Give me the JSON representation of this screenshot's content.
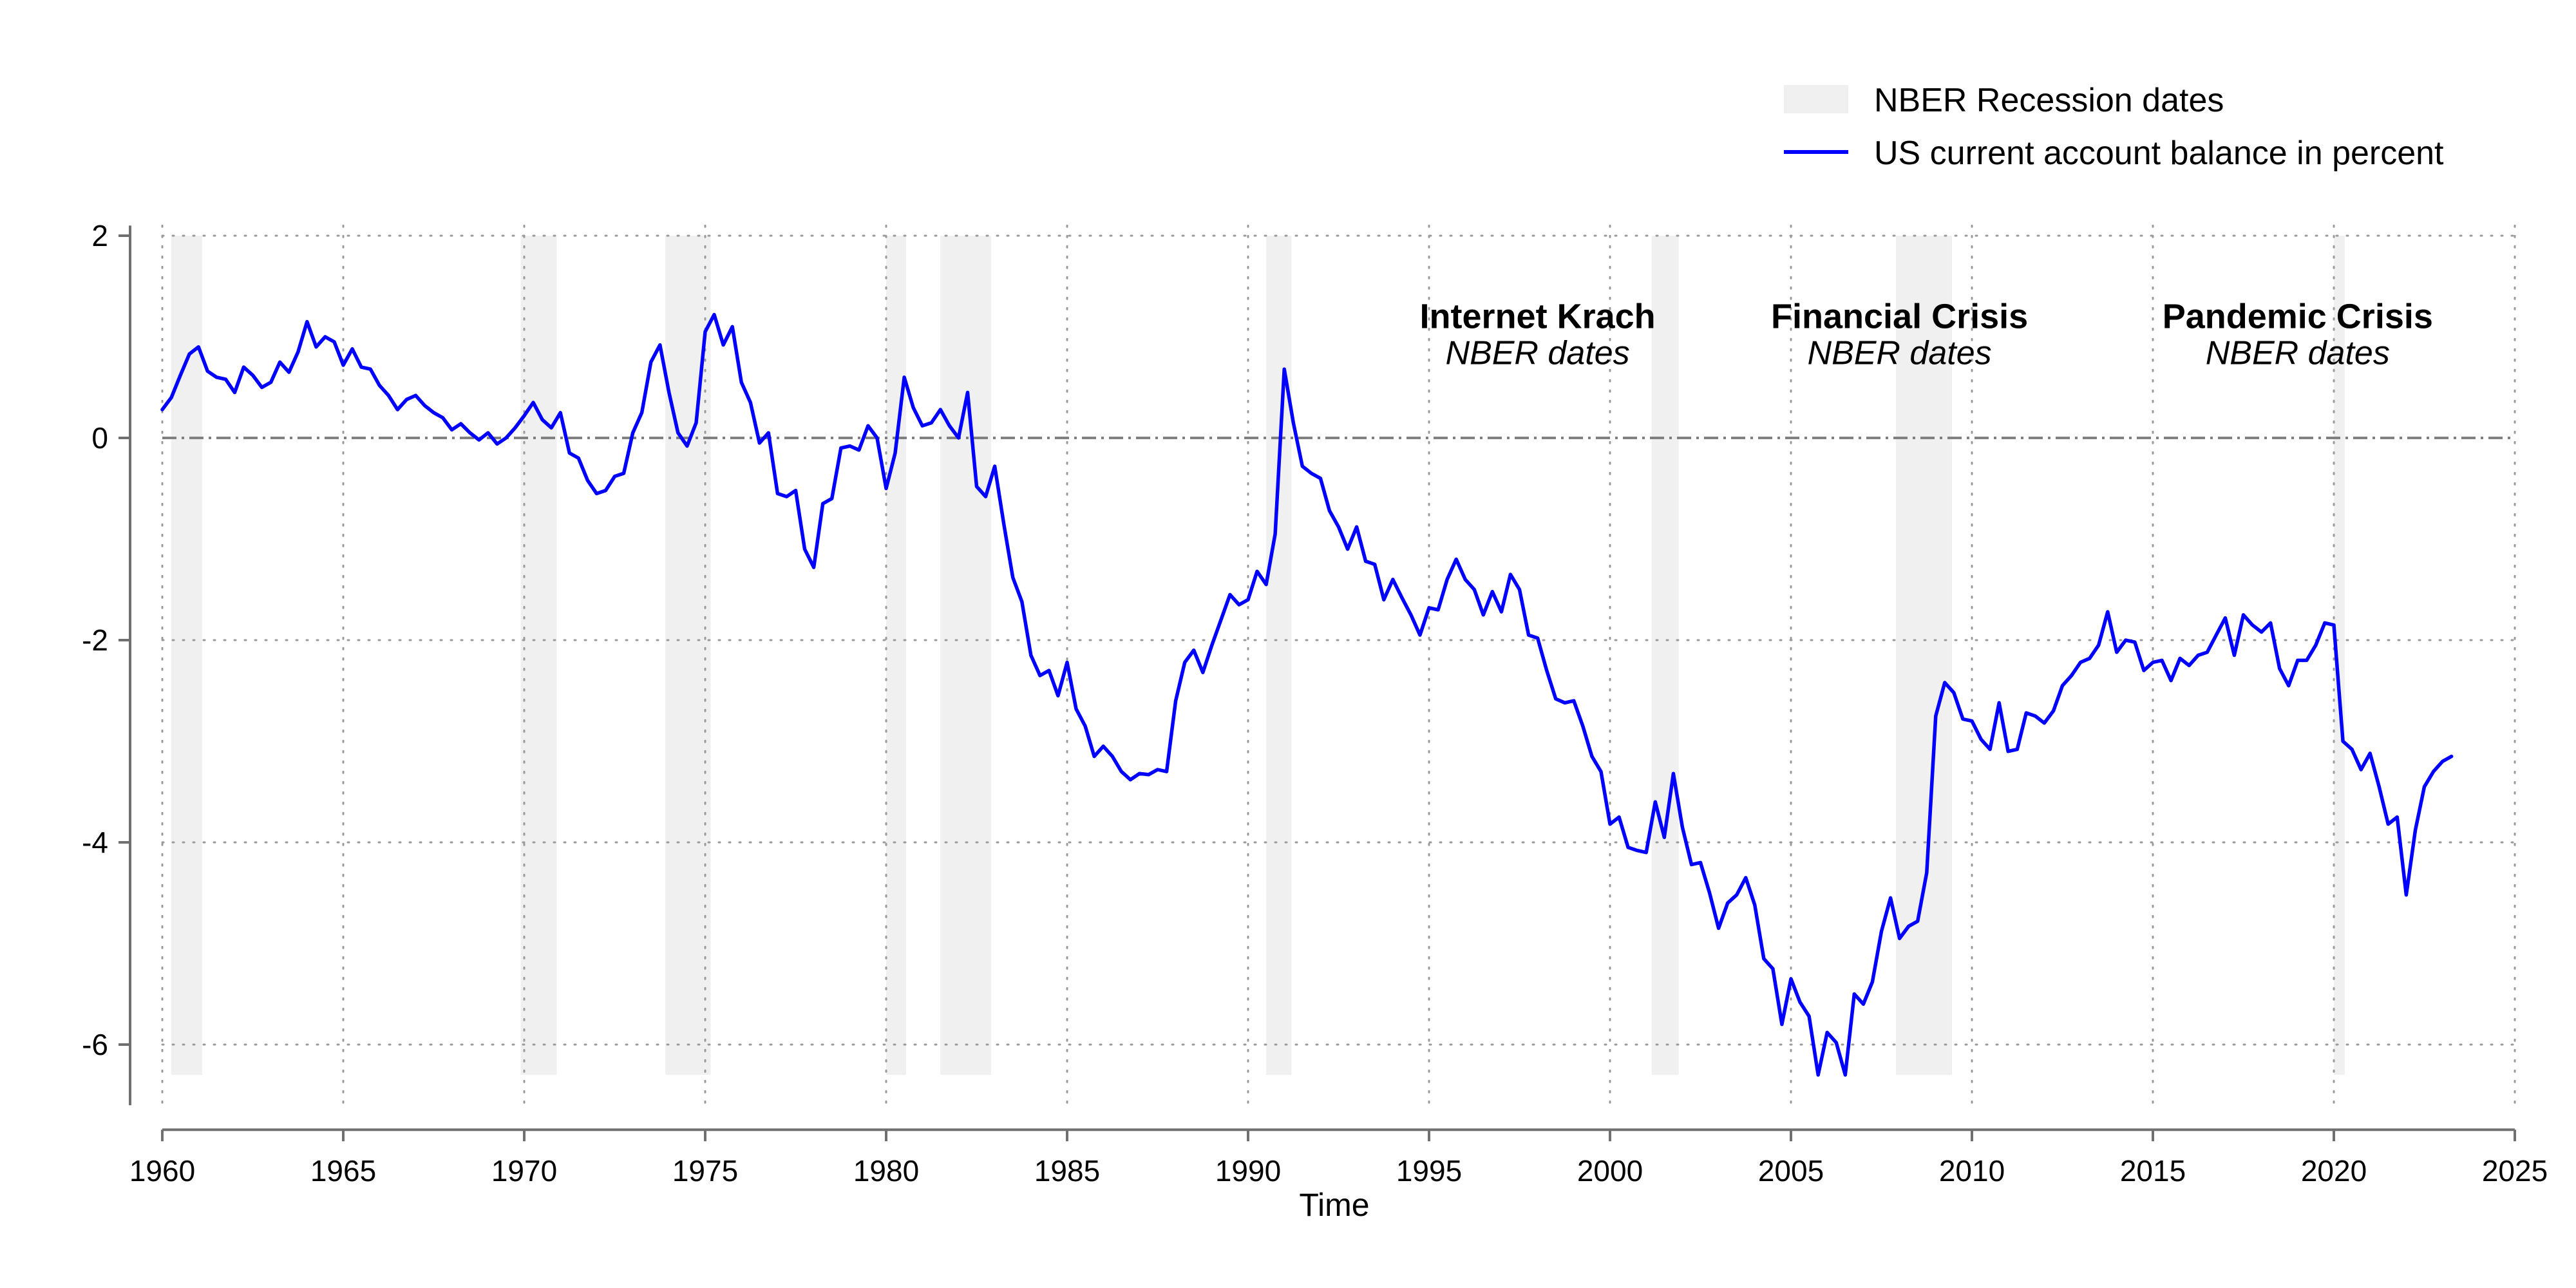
{
  "chart_data": {
    "type": "line",
    "title": "",
    "xlabel": "Time",
    "ylabel": "",
    "xlim": [
      1960,
      2025
    ],
    "ylim": [
      -6.6,
      2.1
    ],
    "x_ticks": [
      1960,
      1965,
      1970,
      1975,
      1980,
      1985,
      1990,
      1995,
      2000,
      2005,
      2010,
      2015,
      2020,
      2025
    ],
    "y_ticks": [
      2,
      0,
      -2,
      -4,
      -6
    ],
    "grid": "dotted",
    "reference_line": 0,
    "legend_position": "top-right",
    "legend": {
      "recession_label": "NBER Recession dates",
      "series_label": "US current account balance in percent"
    },
    "colors": {
      "series": "#0000ff",
      "recession": "#f0f0f0",
      "grid": "#9a9a9a",
      "zero_line": "#808080",
      "axis": "#707070"
    },
    "recessions": [
      [
        1960.25,
        1961.1
      ],
      [
        1969.9,
        1970.9
      ],
      [
        1973.9,
        1975.15
      ],
      [
        1980.0,
        1980.55
      ],
      [
        1981.5,
        1982.9
      ],
      [
        1990.5,
        1991.2
      ],
      [
        2001.15,
        2001.9
      ],
      [
        2007.9,
        2009.45
      ],
      [
        2020.0,
        2020.3
      ]
    ],
    "annotations": [
      {
        "title": "Internet Krach",
        "subtitle": "NBER dates",
        "x": 1998.0,
        "y": 1.15
      },
      {
        "title": "Financial Crisis",
        "subtitle": "NBER dates",
        "x": 2008.0,
        "y": 1.15
      },
      {
        "title": "Pandemic Crisis",
        "subtitle": "NBER dates",
        "x": 2019.0,
        "y": 1.15
      }
    ],
    "series": [
      {
        "name": "US current account balance in percent",
        "points": [
          [
            1960.0,
            0.28
          ],
          [
            1960.25,
            0.4
          ],
          [
            1960.5,
            0.62
          ],
          [
            1960.75,
            0.83
          ],
          [
            1961.0,
            0.9
          ],
          [
            1961.25,
            0.66
          ],
          [
            1961.5,
            0.6
          ],
          [
            1961.75,
            0.58
          ],
          [
            1962.0,
            0.45
          ],
          [
            1962.25,
            0.7
          ],
          [
            1962.5,
            0.62
          ],
          [
            1962.75,
            0.5
          ],
          [
            1963.0,
            0.55
          ],
          [
            1963.25,
            0.75
          ],
          [
            1963.5,
            0.65
          ],
          [
            1963.75,
            0.85
          ],
          [
            1964.0,
            1.15
          ],
          [
            1964.25,
            0.9
          ],
          [
            1964.5,
            1.0
          ],
          [
            1964.75,
            0.95
          ],
          [
            1965.0,
            0.72
          ],
          [
            1965.25,
            0.88
          ],
          [
            1965.5,
            0.7
          ],
          [
            1965.75,
            0.68
          ],
          [
            1966.0,
            0.52
          ],
          [
            1966.25,
            0.42
          ],
          [
            1966.5,
            0.28
          ],
          [
            1966.75,
            0.38
          ],
          [
            1967.0,
            0.42
          ],
          [
            1967.25,
            0.32
          ],
          [
            1967.5,
            0.25
          ],
          [
            1967.75,
            0.2
          ],
          [
            1968.0,
            0.08
          ],
          [
            1968.25,
            0.14
          ],
          [
            1968.5,
            0.05
          ],
          [
            1968.75,
            -0.02
          ],
          [
            1969.0,
            0.05
          ],
          [
            1969.25,
            -0.06
          ],
          [
            1969.5,
            0.0
          ],
          [
            1969.75,
            0.1
          ],
          [
            1970.0,
            0.22
          ],
          [
            1970.25,
            0.35
          ],
          [
            1970.5,
            0.18
          ],
          [
            1970.75,
            0.1
          ],
          [
            1971.0,
            0.25
          ],
          [
            1971.25,
            -0.15
          ],
          [
            1971.5,
            -0.2
          ],
          [
            1971.75,
            -0.42
          ],
          [
            1972.0,
            -0.55
          ],
          [
            1972.25,
            -0.52
          ],
          [
            1972.5,
            -0.38
          ],
          [
            1972.75,
            -0.35
          ],
          [
            1973.0,
            0.05
          ],
          [
            1973.25,
            0.25
          ],
          [
            1973.5,
            0.75
          ],
          [
            1973.75,
            0.92
          ],
          [
            1974.0,
            0.45
          ],
          [
            1974.25,
            0.05
          ],
          [
            1974.5,
            -0.08
          ],
          [
            1974.75,
            0.15
          ],
          [
            1975.0,
            1.05
          ],
          [
            1975.25,
            1.22
          ],
          [
            1975.5,
            0.92
          ],
          [
            1975.75,
            1.1
          ],
          [
            1976.0,
            0.55
          ],
          [
            1976.25,
            0.35
          ],
          [
            1976.5,
            -0.05
          ],
          [
            1976.75,
            0.05
          ],
          [
            1977.0,
            -0.55
          ],
          [
            1977.25,
            -0.58
          ],
          [
            1977.5,
            -0.52
          ],
          [
            1977.75,
            -1.1
          ],
          [
            1978.0,
            -1.28
          ],
          [
            1978.25,
            -0.65
          ],
          [
            1978.5,
            -0.6
          ],
          [
            1978.75,
            -0.1
          ],
          [
            1979.0,
            -0.08
          ],
          [
            1979.25,
            -0.12
          ],
          [
            1979.5,
            0.12
          ],
          [
            1979.75,
            0.0
          ],
          [
            1980.0,
            -0.5
          ],
          [
            1980.25,
            -0.15
          ],
          [
            1980.5,
            0.6
          ],
          [
            1980.75,
            0.3
          ],
          [
            1981.0,
            0.12
          ],
          [
            1981.25,
            0.15
          ],
          [
            1981.5,
            0.28
          ],
          [
            1981.75,
            0.12
          ],
          [
            1982.0,
            0.0
          ],
          [
            1982.25,
            0.45
          ],
          [
            1982.5,
            -0.48
          ],
          [
            1982.75,
            -0.58
          ],
          [
            1983.0,
            -0.28
          ],
          [
            1983.25,
            -0.85
          ],
          [
            1983.5,
            -1.38
          ],
          [
            1983.75,
            -1.62
          ],
          [
            1984.0,
            -2.15
          ],
          [
            1984.25,
            -2.35
          ],
          [
            1984.5,
            -2.3
          ],
          [
            1984.75,
            -2.55
          ],
          [
            1985.0,
            -2.22
          ],
          [
            1985.25,
            -2.68
          ],
          [
            1985.5,
            -2.85
          ],
          [
            1985.75,
            -3.15
          ],
          [
            1986.0,
            -3.05
          ],
          [
            1986.25,
            -3.15
          ],
          [
            1986.5,
            -3.3
          ],
          [
            1986.75,
            -3.38
          ],
          [
            1987.0,
            -3.32
          ],
          [
            1987.25,
            -3.33
          ],
          [
            1987.5,
            -3.28
          ],
          [
            1987.75,
            -3.3
          ],
          [
            1988.0,
            -2.6
          ],
          [
            1988.25,
            -2.22
          ],
          [
            1988.5,
            -2.1
          ],
          [
            1988.75,
            -2.32
          ],
          [
            1989.0,
            -2.05
          ],
          [
            1989.25,
            -1.8
          ],
          [
            1989.5,
            -1.55
          ],
          [
            1989.75,
            -1.65
          ],
          [
            1990.0,
            -1.6
          ],
          [
            1990.25,
            -1.32
          ],
          [
            1990.5,
            -1.45
          ],
          [
            1990.75,
            -0.95
          ],
          [
            1991.0,
            0.68
          ],
          [
            1991.25,
            0.15
          ],
          [
            1991.5,
            -0.28
          ],
          [
            1991.75,
            -0.35
          ],
          [
            1992.0,
            -0.4
          ],
          [
            1992.25,
            -0.72
          ],
          [
            1992.5,
            -0.88
          ],
          [
            1992.75,
            -1.1
          ],
          [
            1993.0,
            -0.88
          ],
          [
            1993.25,
            -1.22
          ],
          [
            1993.5,
            -1.25
          ],
          [
            1993.75,
            -1.6
          ],
          [
            1994.0,
            -1.4
          ],
          [
            1994.25,
            -1.58
          ],
          [
            1994.5,
            -1.75
          ],
          [
            1994.75,
            -1.95
          ],
          [
            1995.0,
            -1.68
          ],
          [
            1995.25,
            -1.7
          ],
          [
            1995.5,
            -1.4
          ],
          [
            1995.75,
            -1.2
          ],
          [
            1996.0,
            -1.4
          ],
          [
            1996.25,
            -1.5
          ],
          [
            1996.5,
            -1.75
          ],
          [
            1996.75,
            -1.52
          ],
          [
            1997.0,
            -1.72
          ],
          [
            1997.25,
            -1.35
          ],
          [
            1997.5,
            -1.5
          ],
          [
            1997.75,
            -1.95
          ],
          [
            1998.0,
            -1.98
          ],
          [
            1998.25,
            -2.3
          ],
          [
            1998.5,
            -2.58
          ],
          [
            1998.75,
            -2.62
          ],
          [
            1999.0,
            -2.6
          ],
          [
            1999.25,
            -2.85
          ],
          [
            1999.5,
            -3.15
          ],
          [
            1999.75,
            -3.3
          ],
          [
            2000.0,
            -3.82
          ],
          [
            2000.25,
            -3.75
          ],
          [
            2000.5,
            -4.05
          ],
          [
            2000.75,
            -4.08
          ],
          [
            2001.0,
            -4.1
          ],
          [
            2001.25,
            -3.6
          ],
          [
            2001.5,
            -3.95
          ],
          [
            2001.75,
            -3.32
          ],
          [
            2002.0,
            -3.85
          ],
          [
            2002.25,
            -4.22
          ],
          [
            2002.5,
            -4.2
          ],
          [
            2002.75,
            -4.5
          ],
          [
            2003.0,
            -4.85
          ],
          [
            2003.25,
            -4.6
          ],
          [
            2003.5,
            -4.52
          ],
          [
            2003.75,
            -4.35
          ],
          [
            2004.0,
            -4.62
          ],
          [
            2004.25,
            -5.15
          ],
          [
            2004.5,
            -5.25
          ],
          [
            2004.75,
            -5.8
          ],
          [
            2005.0,
            -5.35
          ],
          [
            2005.25,
            -5.58
          ],
          [
            2005.5,
            -5.72
          ],
          [
            2005.75,
            -6.3
          ],
          [
            2006.0,
            -5.88
          ],
          [
            2006.25,
            -5.98
          ],
          [
            2006.5,
            -6.3
          ],
          [
            2006.75,
            -5.5
          ],
          [
            2007.0,
            -5.6
          ],
          [
            2007.25,
            -5.38
          ],
          [
            2007.5,
            -4.88
          ],
          [
            2007.75,
            -4.55
          ],
          [
            2008.0,
            -4.95
          ],
          [
            2008.25,
            -4.83
          ],
          [
            2008.5,
            -4.78
          ],
          [
            2008.75,
            -4.3
          ],
          [
            2009.0,
            -2.75
          ],
          [
            2009.25,
            -2.42
          ],
          [
            2009.5,
            -2.52
          ],
          [
            2009.75,
            -2.78
          ],
          [
            2010.0,
            -2.8
          ],
          [
            2010.25,
            -2.98
          ],
          [
            2010.5,
            -3.08
          ],
          [
            2010.75,
            -2.62
          ],
          [
            2011.0,
            -3.1
          ],
          [
            2011.25,
            -3.08
          ],
          [
            2011.5,
            -2.72
          ],
          [
            2011.75,
            -2.75
          ],
          [
            2012.0,
            -2.82
          ],
          [
            2012.25,
            -2.7
          ],
          [
            2012.5,
            -2.45
          ],
          [
            2012.75,
            -2.35
          ],
          [
            2013.0,
            -2.22
          ],
          [
            2013.25,
            -2.18
          ],
          [
            2013.5,
            -2.05
          ],
          [
            2013.75,
            -1.72
          ],
          [
            2014.0,
            -2.12
          ],
          [
            2014.25,
            -2.0
          ],
          [
            2014.5,
            -2.02
          ],
          [
            2014.75,
            -2.3
          ],
          [
            2015.0,
            -2.22
          ],
          [
            2015.25,
            -2.2
          ],
          [
            2015.5,
            -2.4
          ],
          [
            2015.75,
            -2.18
          ],
          [
            2016.0,
            -2.25
          ],
          [
            2016.25,
            -2.15
          ],
          [
            2016.5,
            -2.12
          ],
          [
            2016.75,
            -1.95
          ],
          [
            2017.0,
            -1.78
          ],
          [
            2017.25,
            -2.15
          ],
          [
            2017.5,
            -1.75
          ],
          [
            2017.75,
            -1.85
          ],
          [
            2018.0,
            -1.92
          ],
          [
            2018.25,
            -1.83
          ],
          [
            2018.5,
            -2.28
          ],
          [
            2018.75,
            -2.45
          ],
          [
            2019.0,
            -2.2
          ],
          [
            2019.25,
            -2.2
          ],
          [
            2019.5,
            -2.05
          ],
          [
            2019.75,
            -1.83
          ],
          [
            2020.0,
            -1.85
          ],
          [
            2020.25,
            -3.0
          ],
          [
            2020.5,
            -3.08
          ],
          [
            2020.75,
            -3.28
          ],
          [
            2021.0,
            -3.12
          ],
          [
            2021.25,
            -3.45
          ],
          [
            2021.5,
            -3.82
          ],
          [
            2021.75,
            -3.75
          ],
          [
            2022.0,
            -4.52
          ],
          [
            2022.25,
            -3.88
          ],
          [
            2022.5,
            -3.45
          ],
          [
            2022.75,
            -3.3
          ],
          [
            2023.0,
            -3.2
          ],
          [
            2023.25,
            -3.15
          ]
        ]
      }
    ]
  }
}
